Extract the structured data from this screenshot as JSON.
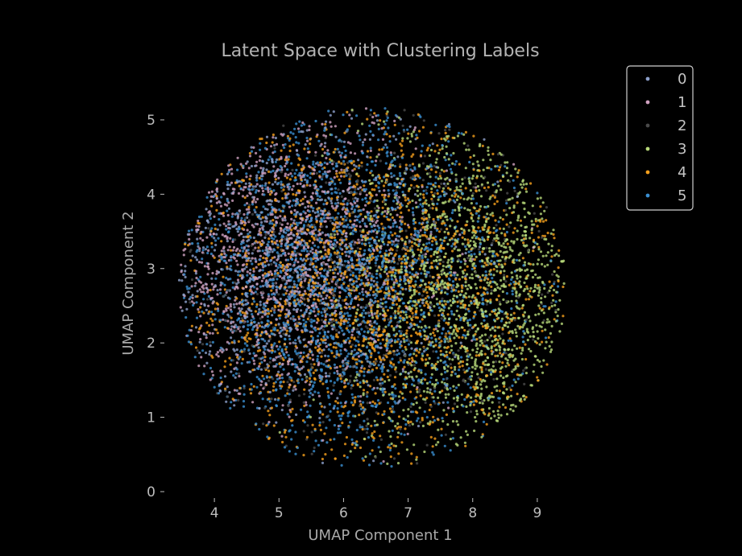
{
  "chart_data": {
    "type": "scatter",
    "title": "Latent Space with Clustering Labels",
    "xlabel": "UMAP Component 1",
    "ylabel": "UMAP Component 2",
    "xlim": [
      3.3,
      9.6
    ],
    "ylim": [
      0,
      5.4
    ],
    "xticks": [
      "4",
      "5",
      "6",
      "7",
      "8",
      "9"
    ],
    "yticks": [
      "0",
      "1",
      "2",
      "3",
      "4",
      "5"
    ],
    "grid": false,
    "legend_position": "top-right",
    "cloud": {
      "center": [
        6.45,
        2.75
      ],
      "radius_x": 3.0,
      "radius_y": 2.45
    },
    "series": [
      {
        "name": "0",
        "color": "#8da0cb",
        "center": [
          5.2,
          3.0
        ],
        "spread": [
          1.2,
          1.0
        ],
        "count": 900
      },
      {
        "name": "1",
        "color": "#d0a1c1",
        "center": [
          5.0,
          3.2
        ],
        "spread": [
          1.1,
          1.0
        ],
        "count": 1100
      },
      {
        "name": "2",
        "color": "#4a4a4a",
        "center": [
          6.3,
          2.8
        ],
        "spread": [
          1.6,
          1.2
        ],
        "count": 600
      },
      {
        "name": "3",
        "color": "#b8d97a",
        "center": [
          8.0,
          2.6
        ],
        "spread": [
          0.9,
          1.2
        ],
        "count": 1500
      },
      {
        "name": "4",
        "color": "#f59f1c",
        "center": [
          6.5,
          2.7
        ],
        "spread": [
          1.5,
          1.2
        ],
        "count": 1700
      },
      {
        "name": "5",
        "color": "#3a8fd1",
        "center": [
          5.9,
          2.8
        ],
        "spread": [
          1.3,
          1.2
        ],
        "count": 2000
      }
    ]
  }
}
